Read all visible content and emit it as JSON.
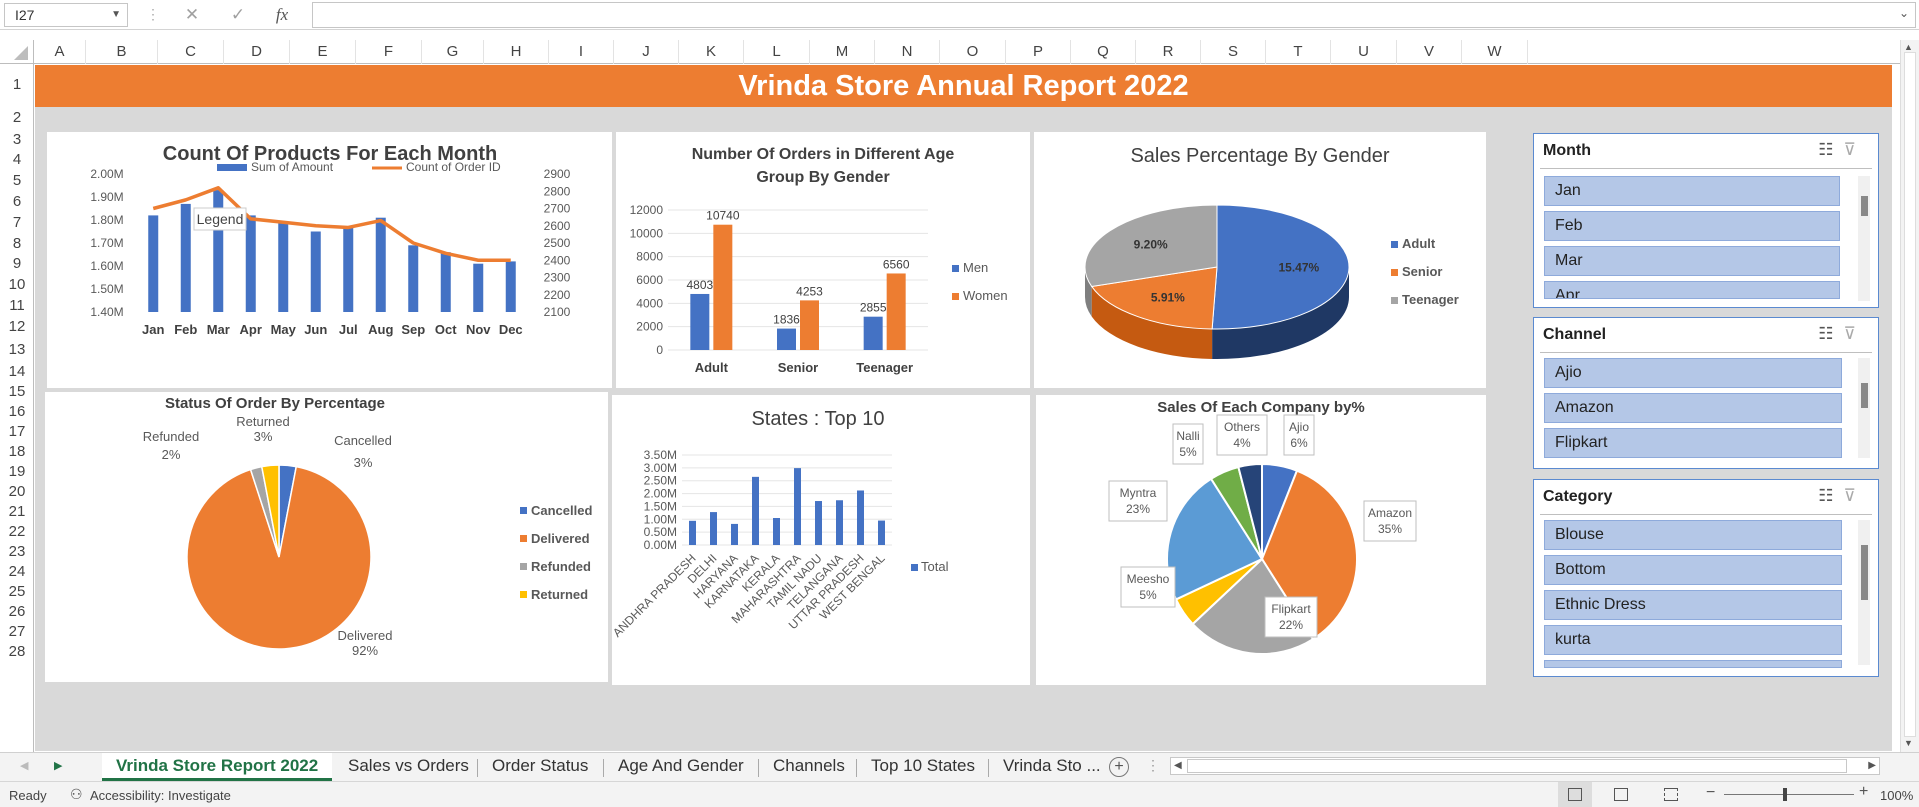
{
  "formula_bar": {
    "name_box": "I27",
    "fx": "fx",
    "cancel": "✕",
    "enter": "✓"
  },
  "columns": [
    "A",
    "B",
    "C",
    "D",
    "E",
    "F",
    "G",
    "H",
    "I",
    "J",
    "K",
    "L",
    "M",
    "N",
    "O",
    "P",
    "Q",
    "R",
    "S",
    "T",
    "U",
    "V",
    "W"
  ],
  "rows": [
    "1",
    "2",
    "3",
    "4",
    "5",
    "6",
    "7",
    "8",
    "9",
    "10",
    "11",
    "12",
    "13",
    "14",
    "15",
    "16",
    "17",
    "18",
    "19",
    "20",
    "21",
    "22",
    "23",
    "24",
    "25",
    "26",
    "27",
    "28"
  ],
  "banner": "Vrinda Store Annual Report 2022",
  "colors": {
    "blue": "#4472c4",
    "orange": "#ed7d31",
    "gray": "#a5a5a5",
    "yellow": "#ffc000",
    "lightblue": "#5b9bd5",
    "green": "#70ad47",
    "navy": "#264478",
    "banner": "#ed7d31",
    "accent": "#217346"
  },
  "chart1": {
    "title": "Count Of Products For Each Month",
    "legend": [
      "Sum of Amount",
      "Count of Order ID"
    ],
    "tooltip": "Legend",
    "chart_data": {
      "type": "bar+line",
      "categories": [
        "Jan",
        "Feb",
        "Mar",
        "Apr",
        "May",
        "Jun",
        "Jul",
        "Aug",
        "Sep",
        "Oct",
        "Nov",
        "Dec"
      ],
      "series": [
        {
          "name": "Sum of Amount",
          "values": [
            1.82,
            1.87,
            1.93,
            1.82,
            1.79,
            1.75,
            1.77,
            1.81,
            1.69,
            1.66,
            1.61,
            1.62
          ]
        },
        {
          "name": "Count of Order ID",
          "values": [
            2700,
            2750,
            2820,
            2640,
            2620,
            2600,
            2590,
            2630,
            2500,
            2440,
            2400,
            2400
          ]
        }
      ],
      "y_ticks": [
        "2.00M",
        "1.90M",
        "1.80M",
        "1.70M",
        "1.60M",
        "1.50M",
        "1.40M"
      ],
      "ylim": [
        1.4,
        2.0
      ],
      "y2_ticks": [
        "2900",
        "2800",
        "2700",
        "2600",
        "2500",
        "2400",
        "2300",
        "2200",
        "2100"
      ],
      "y2lim": [
        2100,
        2900
      ]
    }
  },
  "chart2": {
    "title_line1": "Number Of Orders in Different Age",
    "title_line2": "Group By Gender",
    "legend": [
      "Men",
      "Women"
    ],
    "chart_data": {
      "type": "bar",
      "categories": [
        "Adult",
        "Senior",
        "Teenager"
      ],
      "series": [
        {
          "name": "Men",
          "values": [
            4803,
            1836,
            2855
          ]
        },
        {
          "name": "Women",
          "values": [
            10740,
            4253,
            6560
          ]
        }
      ],
      "y_ticks": [
        "12000",
        "10000",
        "8000",
        "6000",
        "4000",
        "2000",
        "0"
      ],
      "ylim": [
        0,
        12000
      ]
    }
  },
  "chart3": {
    "title": "Sales Percentage By Gender",
    "legend": [
      "Adult",
      "Senior",
      "Teenager"
    ],
    "chart_data": {
      "type": "pie",
      "labels": [
        "Adult",
        "Senior",
        "Teenager"
      ],
      "values": [
        15.47,
        5.91,
        9.2
      ],
      "data_labels": [
        "15.47%",
        "5.91%",
        "9.20%"
      ]
    }
  },
  "chart4": {
    "title": "Status Of Order By Percentage",
    "legend": [
      "Cancelled",
      "Delivered",
      "Refunded",
      "Returned"
    ],
    "chart_data": {
      "type": "pie",
      "labels": [
        "Cancelled",
        "Delivered",
        "Refunded",
        "Returned"
      ],
      "values": [
        3,
        92,
        2,
        3
      ],
      "data_labels": [
        {
          "name": "Cancelled",
          "pct": "3%"
        },
        {
          "name": "Delivered",
          "pct": "92%"
        },
        {
          "name": "Refunded",
          "pct": "2%"
        },
        {
          "name": "Returned",
          "pct": "3%"
        }
      ]
    }
  },
  "chart5": {
    "title": "States : Top 10",
    "legend": [
      "Total"
    ],
    "chart_data": {
      "type": "bar",
      "categories": [
        "ANDHRA PRADESH",
        "DELHI",
        "HARYANA",
        "KARNATAKA",
        "KERALA",
        "MAHARASHTRA",
        "TAMIL NADU",
        "TELANGANA",
        "UTTAR PRADESH",
        "WEST BENGAL"
      ],
      "series": [
        {
          "name": "Total",
          "values": [
            0.94,
            1.28,
            0.82,
            2.65,
            1.05,
            2.99,
            1.71,
            1.74,
            2.12,
            0.95
          ]
        }
      ],
      "y_ticks": [
        "3.50M",
        "3.00M",
        "2.50M",
        "2.00M",
        "1.50M",
        "1.00M",
        "0.50M",
        "0.00M"
      ],
      "ylim": [
        0,
        3.5
      ]
    }
  },
  "chart6": {
    "title": "Sales Of Each Company by%",
    "chart_data": {
      "type": "pie",
      "labels": [
        "Ajio",
        "Amazon",
        "Flipkart",
        "Meesho",
        "Myntra",
        "Nalli",
        "Others"
      ],
      "values": [
        6,
        35,
        22,
        5,
        23,
        5,
        4
      ],
      "data_labels": [
        {
          "name": "Ajio",
          "pct": "6%"
        },
        {
          "name": "Amazon",
          "pct": "35%"
        },
        {
          "name": "Flipkart",
          "pct": "22%"
        },
        {
          "name": "Meesho",
          "pct": "5%"
        },
        {
          "name": "Myntra",
          "pct": "23%"
        },
        {
          "name": "Nalli",
          "pct": "5%"
        },
        {
          "name": "Others",
          "pct": "4%"
        }
      ]
    }
  },
  "slicers": [
    {
      "title": "Month",
      "items": [
        "Jan",
        "Feb",
        "Mar",
        "Apr"
      ]
    },
    {
      "title": "Channel",
      "items": [
        "Ajio",
        "Amazon",
        "Flipkart"
      ]
    },
    {
      "title": "Category",
      "items": [
        "Blouse",
        "Bottom",
        "Ethnic Dress",
        "kurta"
      ]
    }
  ],
  "tabs": [
    "Vrinda Store Report 2022",
    "Sales vs Orders",
    "Order Status",
    "Age And Gender",
    "Channels",
    "Top 10 States",
    "Vrinda Sto ..."
  ],
  "status": {
    "ready": "Ready",
    "accessibility": "Accessibility: Investigate",
    "zoom": "100%"
  }
}
